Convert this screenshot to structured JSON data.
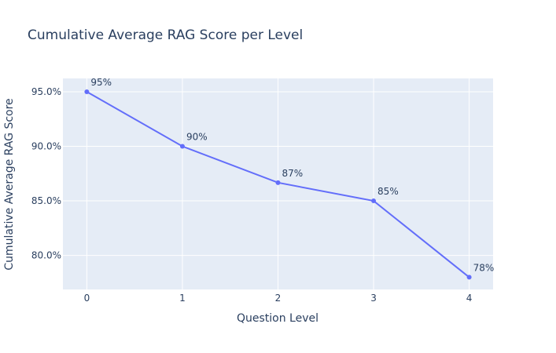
{
  "chart_data": {
    "type": "line",
    "title": "Cumulative Average RAG Score per Level",
    "xlabel": "Question Level",
    "ylabel": "Cumulative Average RAG Score",
    "x": [
      0,
      1,
      2,
      3,
      4
    ],
    "x_tick_labels": [
      "0",
      "1",
      "2",
      "3",
      "4"
    ],
    "values": [
      0.95,
      0.9,
      0.8667,
      0.85,
      0.78
    ],
    "data_labels": [
      "95%",
      "90%",
      "87%",
      "85%",
      "78%"
    ],
    "y_ticks": [
      0.8,
      0.85,
      0.9,
      0.95
    ],
    "y_tick_labels": [
      "80.0%",
      "85.0%",
      "90.0%",
      "95.0%"
    ],
    "xlim": [
      -0.25,
      4.25
    ],
    "ylim": [
      0.7688,
      0.9622
    ],
    "grid": true,
    "colors": {
      "line": "#636efa",
      "plot_bg": "#e5ecf6",
      "grid": "#ffffff",
      "text": "#2a3f5f"
    }
  }
}
